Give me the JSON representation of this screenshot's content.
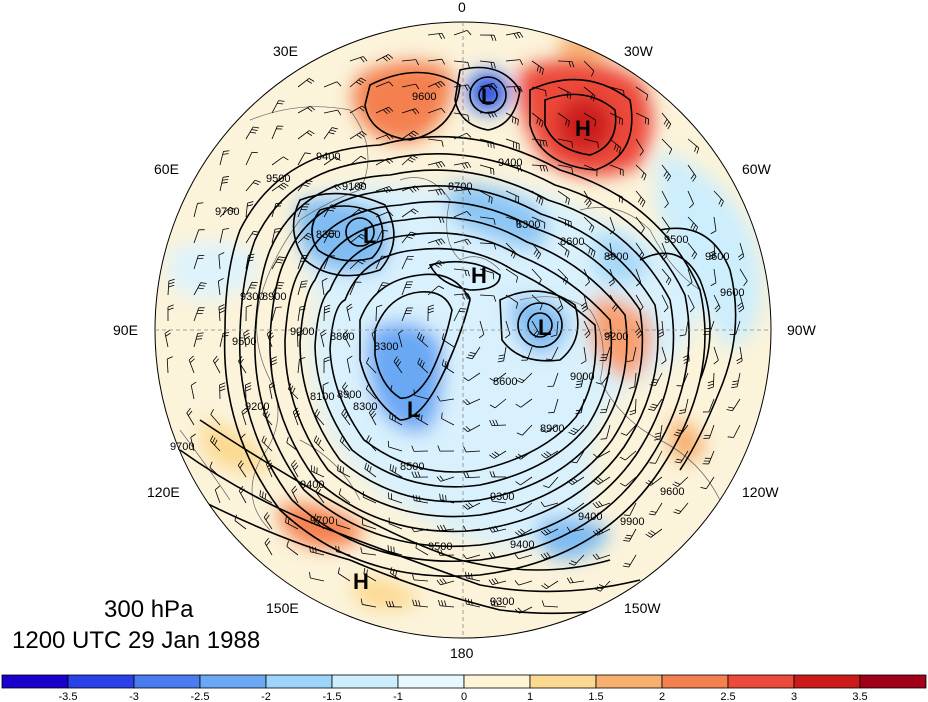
{
  "title": {
    "level": "300 hPa",
    "datetime": "1200 UTC 29 Jan 1988"
  },
  "longitude_labels": {
    "top": "0",
    "top_left": "30E",
    "top_right": "30W",
    "upper_left": "60E",
    "upper_right": "60W",
    "left": "90E",
    "right": "90W",
    "lower_left": "120E",
    "lower_right": "120W",
    "bottom_left": "150E",
    "bottom_right": "150W",
    "bottom": "180"
  },
  "contour_labels": [
    "9600",
    "9400",
    "9500",
    "9700",
    "9100",
    "8700",
    "9400",
    "8300",
    "8600",
    "9500",
    "9600",
    "9600",
    "8900",
    "9300",
    "8300",
    "8900",
    "9200",
    "8800",
    "8300",
    "9000",
    "8100",
    "8900",
    "8300",
    "9000",
    "8600",
    "8900",
    "8500",
    "9400",
    "9300",
    "9500",
    "9400",
    "9700",
    "9600",
    "9200",
    "9700",
    "9500",
    "9900",
    "9400",
    "9300"
  ],
  "centers": [
    {
      "label": "L"
    },
    {
      "label": "H"
    },
    {
      "label": "L"
    },
    {
      "label": "H"
    },
    {
      "label": "L"
    },
    {
      "label": "L"
    },
    {
      "label": "H"
    }
  ],
  "colorbar": {
    "ticks": [
      "-3.5",
      "-3",
      "-2.5",
      "-2",
      "-1.5",
      "-1",
      "0",
      "1",
      "1.5",
      "2",
      "2.5",
      "3",
      "3.5"
    ],
    "colors": [
      "#1a00cc",
      "#2a40e8",
      "#4a7cf0",
      "#6aa8f4",
      "#9cd4fa",
      "#cdeefc",
      "#e8f8ff",
      "#fff5d6",
      "#fcd990",
      "#f8b070",
      "#f48050",
      "#ec4a3a",
      "#cc1a1a",
      "#a00018"
    ]
  },
  "colors": {
    "contour": "#000000",
    "land": "#555555",
    "disk_neutral": "#fbf3da"
  }
}
